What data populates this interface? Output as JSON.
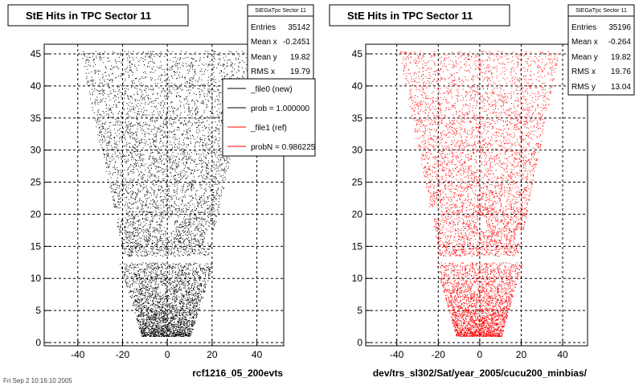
{
  "footer_text": "Fri Sep 2 10:16:10 2005",
  "colors": {
    "new": "#000000",
    "ref": "#ff0000",
    "grid": "#000000"
  },
  "chart_data": [
    {
      "type": "scatter",
      "title": "StE Hits in TPC Sector 11",
      "xlabel": "rcf1216_05_200evts",
      "ylabel": "",
      "xlim": [
        -55,
        52
      ],
      "ylim": [
        -0.5,
        46.5
      ],
      "xticks": [
        -40,
        -20,
        0,
        20,
        40
      ],
      "yticks": [
        0,
        5,
        10,
        15,
        20,
        25,
        30,
        35,
        40,
        45
      ],
      "grid": true,
      "color": "#000000",
      "point_count": 7000,
      "stats": {
        "name": "StEGaTpc Sector 11",
        "rows": [
          {
            "label": "Entries",
            "value": "35142"
          },
          {
            "label": "Mean x",
            "value": "-0.2451"
          },
          {
            "label": "Mean y",
            "value": "19.82"
          },
          {
            "label": "RMS x",
            "value": "19.79"
          }
        ]
      },
      "legend": {
        "position": "top-right",
        "entries": [
          {
            "label": "_file0 (new)",
            "color": "#000000"
          },
          {
            "label": "prob = 1.000000",
            "color": "#000000"
          },
          {
            "label": "_file1 (ref)",
            "color": "#ff0000"
          },
          {
            "label": "probN = 0.986225",
            "color": "#ff0000"
          }
        ]
      }
    },
    {
      "type": "scatter",
      "title": "StE Hits in TPC Sector 11",
      "xlabel": "dev/trs_sl302/Sat/year_2005/cucu200_minbias/",
      "ylabel": "",
      "xlim": [
        -55,
        52
      ],
      "ylim": [
        -0.5,
        46.5
      ],
      "xticks": [
        -40,
        -20,
        0,
        20,
        40
      ],
      "yticks": [
        0,
        5,
        10,
        15,
        20,
        25,
        30,
        35,
        40,
        45
      ],
      "grid": true,
      "color": "#ff0000",
      "point_count": 7000,
      "stats": {
        "name": "StEGaTpc Sector 11",
        "rows": [
          {
            "label": "Entries",
            "value": "35196"
          },
          {
            "label": "Mean x",
            "value": "-0.264"
          },
          {
            "label": "Mean y",
            "value": "19.82"
          },
          {
            "label": "RMS x",
            "value": "19.76"
          },
          {
            "label": "RMS y",
            "value": "13.04"
          }
        ]
      }
    }
  ]
}
